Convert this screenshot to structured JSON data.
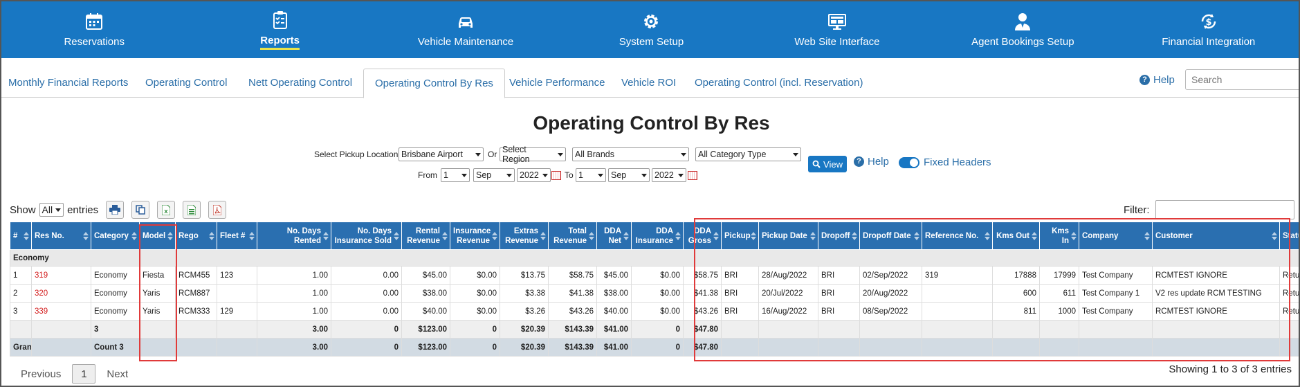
{
  "nav": [
    {
      "label": "Reservations",
      "icon": "calendar-icon",
      "active": false
    },
    {
      "label": "Reports",
      "icon": "clipboard-icon",
      "active": true
    },
    {
      "label": "Vehicle Maintenance",
      "icon": "car-icon",
      "active": false
    },
    {
      "label": "System Setup",
      "icon": "gear-icon",
      "active": false
    },
    {
      "label": "Web Site Interface",
      "icon": "monitor-icon",
      "active": false
    },
    {
      "label": "Agent Bookings Setup",
      "icon": "agent-icon",
      "active": false
    },
    {
      "label": "Financial Integration",
      "icon": "dollar-sync-icon",
      "active": false
    }
  ],
  "subtabs": [
    {
      "label": "Monthly Financial Reports",
      "active": false
    },
    {
      "label": "Operating Control",
      "active": false
    },
    {
      "label": "Nett Operating Control",
      "active": false
    },
    {
      "label": "Operating Control By Res",
      "active": true
    },
    {
      "label": "Vehicle Performance",
      "active": false
    },
    {
      "label": "Vehicle ROI",
      "active": false
    },
    {
      "label": "Operating Control (incl. Reservation)",
      "active": false
    }
  ],
  "help_label": "Help",
  "search_placeholder": "Search",
  "page_title": "Operating Control By Res",
  "filters": {
    "pickup_label": "Select Pickup Location",
    "pickup_value": "Brisbane Airport",
    "or_label": "Or",
    "region_value": "Select Region",
    "brand_value": "All Brands",
    "category_value": "All Category Type",
    "from_label": "From",
    "from_day": "1",
    "from_month": "Sep",
    "from_year": "2022",
    "to_label": "To",
    "to_day": "1",
    "to_month": "Sep",
    "to_year": "2022",
    "view_label": "View",
    "help_label": "Help",
    "fixed_headers_label": "Fixed Headers"
  },
  "show": {
    "prefix": "Show",
    "value": "All",
    "suffix": "entries"
  },
  "filter_label": "Filter:",
  "table": {
    "headers": [
      "#",
      "Res No.",
      "Category",
      "Model",
      "Rego",
      "Fleet #",
      "No. Days Rented",
      "No. Days Insurance Sold",
      "Rental Revenue",
      "Insurance Revenue",
      "Extras Revenue",
      "Total Revenue",
      "DDA Net",
      "DDA Insurance",
      "DDA Gross",
      "Pickup",
      "Pickup Date",
      "Dropoff",
      "Dropoff Date",
      "Reference No.",
      "Kms Out",
      "Kms In",
      "Company",
      "Customer",
      "Status"
    ],
    "group_label": "Economy",
    "rows": [
      [
        "1",
        "319",
        "Economy",
        "Fiesta",
        "RCM455",
        "123",
        "1.00",
        "0.00",
        "$45.00",
        "$0.00",
        "$13.75",
        "$58.75",
        "$45.00",
        "$0.00",
        "$58.75",
        "BRI",
        "28/Aug/2022",
        "BRI",
        "02/Sep/2022",
        "319",
        "17888",
        "17999",
        "Test Company",
        "RCMTEST IGNORE",
        "Returned"
      ],
      [
        "2",
        "320",
        "Economy",
        "Yaris",
        "RCM887",
        "",
        "1.00",
        "0.00",
        "$38.00",
        "$0.00",
        "$3.38",
        "$41.38",
        "$38.00",
        "$0.00",
        "$41.38",
        "BRI",
        "20/Jul/2022",
        "BRI",
        "20/Aug/2022",
        "",
        "600",
        "611",
        "Test Company 1",
        "V2 res update RCM TESTING",
        "Returned"
      ],
      [
        "3",
        "339",
        "Economy",
        "Yaris",
        "RCM333",
        "129",
        "1.00",
        "0.00",
        "$40.00",
        "$0.00",
        "$3.26",
        "$43.26",
        "$40.00",
        "$0.00",
        "$43.26",
        "BRI",
        "16/Aug/2022",
        "BRI",
        "08/Sep/2022",
        "",
        "811",
        "1000",
        "Test Company",
        "RCMTEST IGNORE",
        "Returned"
      ]
    ],
    "subtotal": [
      "",
      "",
      "3",
      "",
      "",
      "",
      "3.00",
      "0",
      "$123.00",
      "0",
      "$20.39",
      "$143.39",
      "$41.00",
      "0",
      "$47.80",
      "",
      "",
      "",
      "",
      "",
      "",
      "",
      "",
      "",
      ""
    ],
    "grand_total": [
      "Grand Total",
      "",
      "Count 3",
      "",
      "",
      "",
      "3.00",
      "0",
      "$123.00",
      "0",
      "$20.39",
      "$143.39",
      "$41.00",
      "0",
      "$47.80",
      "",
      "",
      "",
      "",
      "",
      "",
      "",
      "",
      "",
      ""
    ]
  },
  "pager": {
    "previous": "Previous",
    "page": "1",
    "next": "Next"
  },
  "showing_text": "Showing 1 to 3 of 3 entries"
}
